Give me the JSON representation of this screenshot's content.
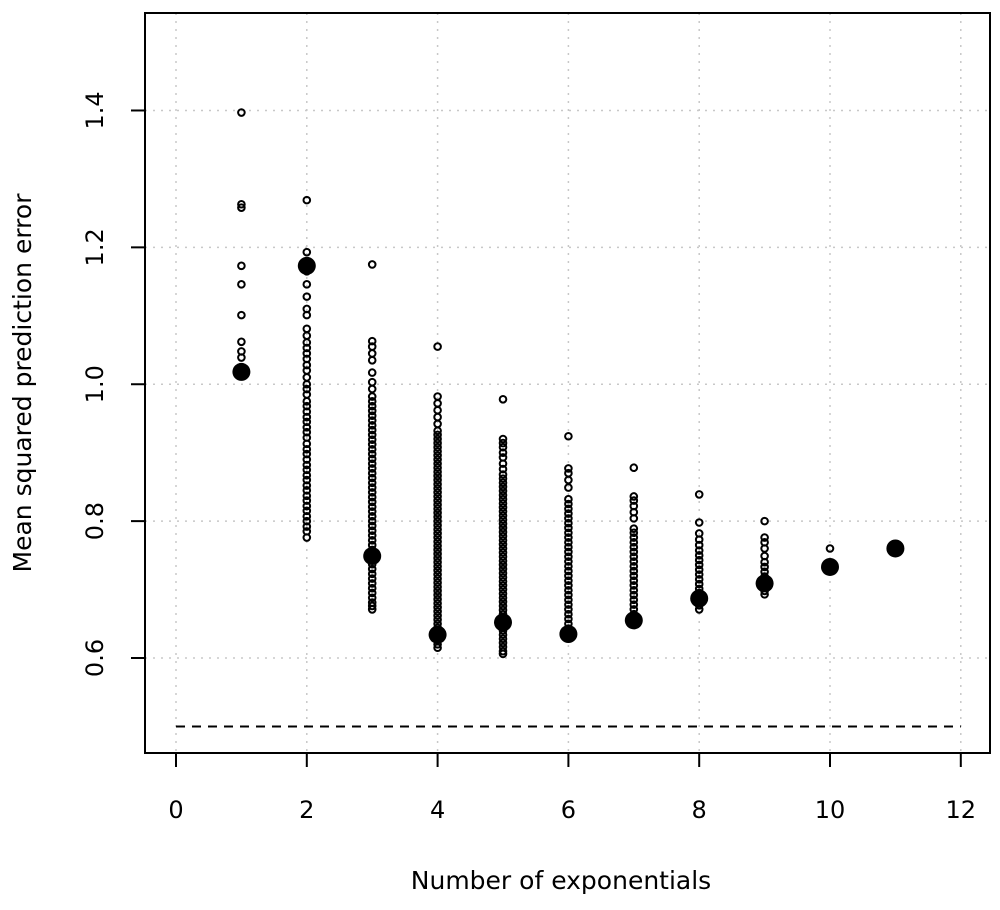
{
  "chart_data": {
    "type": "scatter",
    "xlabel": "Number of exponentials",
    "ylabel": "Mean squared prediction error",
    "xlim": [
      -0.5,
      12.5
    ],
    "ylim": [
      0.45,
      1.54
    ],
    "x_ticks": [
      0,
      2,
      4,
      6,
      8,
      10,
      12
    ],
    "y_ticks": [
      0.6,
      0.8,
      1.0,
      1.2,
      1.4
    ],
    "x_tick_labels": [
      "0",
      "2",
      "4",
      "6",
      "8",
      "10",
      "12"
    ],
    "y_tick_labels": [
      "0.6",
      "0.8",
      "1.0",
      "1.2",
      "1.4"
    ],
    "grid": true,
    "reference_line": {
      "y": 0.5,
      "style": "dashed"
    },
    "series": [
      {
        "style": "open-circle",
        "points": [
          {
            "x": 1,
            "y": [
              1.397,
              1.263,
              1.258,
              1.173,
              1.146,
              1.101,
              1.062,
              1.048,
              1.039,
              1.021
            ]
          },
          {
            "x": 2,
            "y": [
              1.269,
              1.193,
              1.165,
              1.146,
              1.128,
              1.11,
              1.101,
              1.081,
              1.071,
              1.061,
              1.053,
              1.045,
              1.037,
              1.028,
              1.02,
              1.01,
              1.0,
              0.993,
              0.985,
              0.975,
              0.968,
              0.96,
              0.952,
              0.945,
              0.937,
              0.93,
              0.922,
              0.913,
              0.905,
              0.898,
              0.89,
              0.882,
              0.875,
              0.867,
              0.86,
              0.852,
              0.845,
              0.837,
              0.83,
              0.822,
              0.815,
              0.807,
              0.8,
              0.792,
              0.785,
              0.776
            ]
          },
          {
            "x": 3,
            "y": [
              1.175,
              1.063,
              1.055,
              1.045,
              1.035,
              1.017,
              1.003,
              0.993,
              0.982,
              0.975,
              0.968,
              0.961,
              0.954,
              0.947,
              0.94,
              0.933,
              0.926,
              0.919,
              0.912,
              0.905,
              0.898,
              0.891,
              0.884,
              0.877,
              0.87,
              0.863,
              0.856,
              0.849,
              0.842,
              0.835,
              0.828,
              0.821,
              0.814,
              0.807,
              0.8,
              0.793,
              0.786,
              0.779,
              0.772,
              0.765,
              0.758,
              0.751,
              0.744,
              0.737,
              0.73,
              0.723,
              0.716,
              0.709,
              0.702,
              0.695,
              0.688,
              0.681,
              0.676,
              0.671
            ]
          },
          {
            "x": 4,
            "y": [
              1.055,
              0.982,
              0.972,
              0.962,
              0.952,
              0.942,
              0.932,
              0.926,
              0.92,
              0.914,
              0.908,
              0.902,
              0.896,
              0.89,
              0.884,
              0.878,
              0.872,
              0.866,
              0.86,
              0.854,
              0.848,
              0.842,
              0.836,
              0.83,
              0.824,
              0.818,
              0.812,
              0.806,
              0.8,
              0.794,
              0.788,
              0.782,
              0.776,
              0.77,
              0.764,
              0.758,
              0.752,
              0.746,
              0.74,
              0.734,
              0.728,
              0.722,
              0.716,
              0.71,
              0.704,
              0.698,
              0.692,
              0.686,
              0.68,
              0.674,
              0.668,
              0.662,
              0.656,
              0.65,
              0.644,
              0.638,
              0.632,
              0.626,
              0.62,
              0.615
            ]
          },
          {
            "x": 5,
            "y": [
              0.978,
              0.92,
              0.914,
              0.908,
              0.9,
              0.893,
              0.884,
              0.876,
              0.868,
              0.862,
              0.856,
              0.85,
              0.844,
              0.838,
              0.832,
              0.826,
              0.82,
              0.814,
              0.808,
              0.802,
              0.796,
              0.79,
              0.784,
              0.778,
              0.772,
              0.766,
              0.76,
              0.754,
              0.748,
              0.742,
              0.736,
              0.73,
              0.724,
              0.718,
              0.712,
              0.706,
              0.7,
              0.694,
              0.688,
              0.682,
              0.676,
              0.67,
              0.664,
              0.658,
              0.652,
              0.646,
              0.64,
              0.634,
              0.628,
              0.622,
              0.616,
              0.61,
              0.606
            ]
          },
          {
            "x": 6,
            "y": [
              0.924,
              0.877,
              0.87,
              0.86,
              0.849,
              0.832,
              0.825,
              0.818,
              0.811,
              0.804,
              0.797,
              0.79,
              0.783,
              0.776,
              0.769,
              0.762,
              0.755,
              0.748,
              0.741,
              0.734,
              0.727,
              0.72,
              0.713,
              0.706,
              0.699,
              0.692,
              0.685,
              0.678,
              0.671,
              0.664,
              0.657,
              0.65,
              0.643,
              0.636,
              0.631
            ]
          },
          {
            "x": 7,
            "y": [
              0.878,
              0.836,
              0.83,
              0.822,
              0.813,
              0.804,
              0.789,
              0.783,
              0.776,
              0.769,
              0.762,
              0.755,
              0.748,
              0.741,
              0.734,
              0.727,
              0.72,
              0.713,
              0.706,
              0.699,
              0.692,
              0.685,
              0.678,
              0.671,
              0.664,
              0.657,
              0.651
            ]
          },
          {
            "x": 8,
            "y": [
              0.839,
              0.798,
              0.782,
              0.773,
              0.765,
              0.757,
              0.75,
              0.743,
              0.736,
              0.729,
              0.722,
              0.715,
              0.708,
              0.701,
              0.695,
              0.689,
              0.683,
              0.677,
              0.671
            ]
          },
          {
            "x": 9,
            "y": [
              0.8,
              0.776,
              0.769,
              0.76,
              0.749,
              0.74,
              0.733,
              0.726,
              0.719,
              0.712,
              0.705,
              0.698,
              0.693
            ]
          },
          {
            "x": 10,
            "y": [
              0.76,
              0.735,
              0.73
            ]
          },
          {
            "x": 11,
            "y": []
          }
        ]
      },
      {
        "style": "filled-circle",
        "points": [
          {
            "x": 1,
            "y": 1.018
          },
          {
            "x": 2,
            "y": 1.173
          },
          {
            "x": 3,
            "y": 0.749
          },
          {
            "x": 4,
            "y": 0.634
          },
          {
            "x": 5,
            "y": 0.652
          },
          {
            "x": 6,
            "y": 0.635
          },
          {
            "x": 7,
            "y": 0.655
          },
          {
            "x": 8,
            "y": 0.687
          },
          {
            "x": 9,
            "y": 0.709
          },
          {
            "x": 10,
            "y": 0.733
          },
          {
            "x": 11,
            "y": 0.76
          }
        ]
      }
    ]
  }
}
